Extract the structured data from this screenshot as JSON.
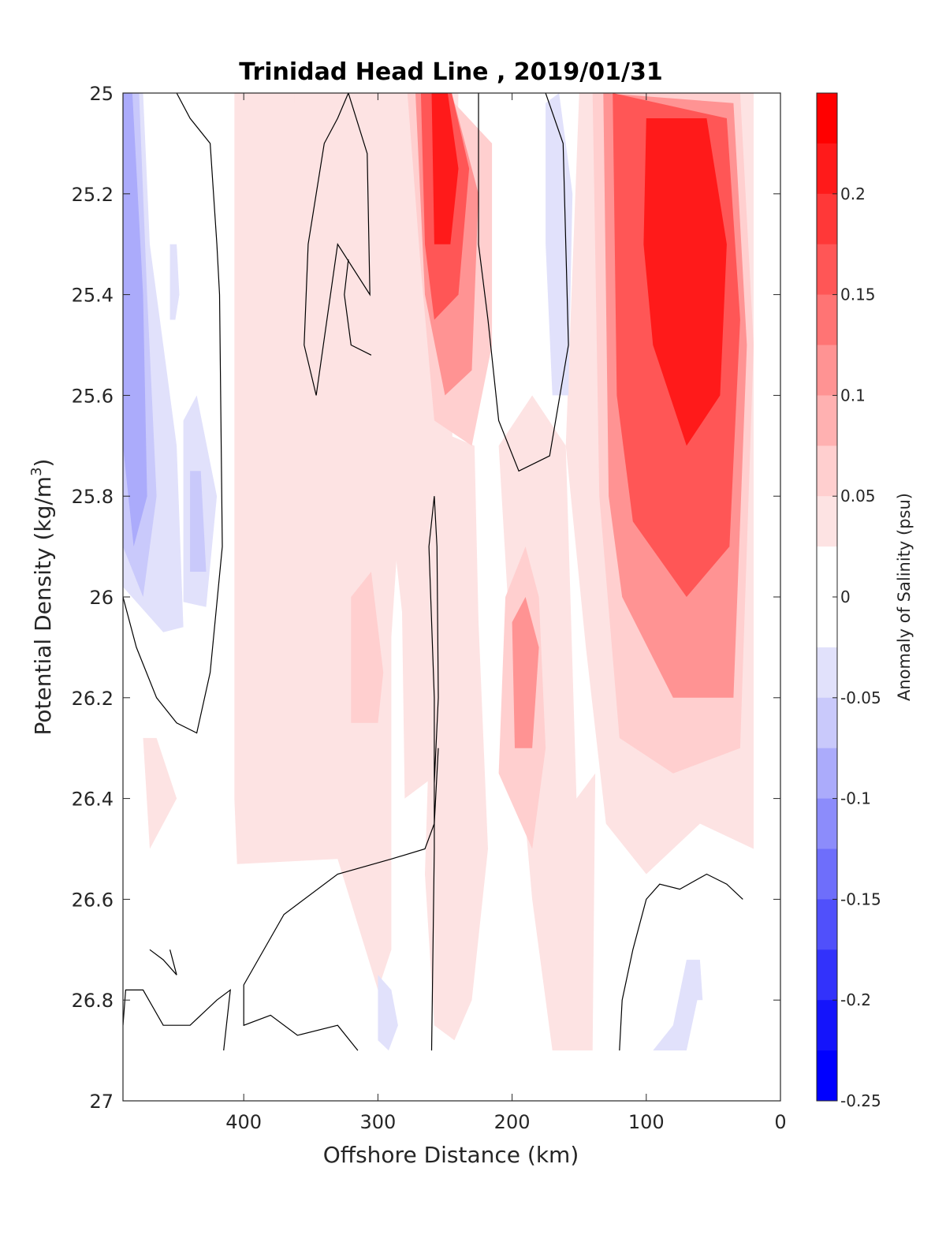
{
  "chart_data": {
    "type": "filled-contour",
    "title": "Trinidad Head Line , 2019/01/31",
    "xlabel": "Offshore Distance (km)",
    "ylabel": "Potential Density (kg/m",
    "ylabel_sup": "3",
    "ylabel_end": ")",
    "xlim": [
      490,
      0
    ],
    "ylim": [
      25,
      27
    ],
    "x_reversed": true,
    "y_reversed": true,
    "xticks": [
      400,
      300,
      200,
      100,
      0
    ],
    "yticks": [
      25,
      25.2,
      25.4,
      25.6,
      25.8,
      26,
      26.2,
      26.4,
      26.6,
      26.8,
      27
    ],
    "xtick_labels": [
      "400",
      "300",
      "200",
      "100",
      "0"
    ],
    "ytick_labels": [
      "25",
      "25.2",
      "25.4",
      "25.6",
      "25.8",
      "26",
      "26.2",
      "26.4",
      "26.6",
      "26.8",
      "27"
    ],
    "grid": false,
    "colorbar": {
      "label": "Anomaly of Salinity (psu)",
      "range": [
        -0.25,
        0.25
      ],
      "tick_values": [
        0.2,
        0.15,
        0.1,
        0.05,
        0,
        -0.05,
        -0.1,
        -0.15,
        -0.2,
        -0.25
      ],
      "tick_labels": [
        "0.2",
        "0.15",
        "0.1",
        "0.05",
        "0",
        "-0.05",
        "-0.1",
        "-0.15",
        "-0.2",
        "-0.25"
      ],
      "colors": [
        "#ff0000",
        "#ff1a1a",
        "#ff3838",
        "#ff5656",
        "#ff7474",
        "#ff9393",
        "#ffb1b1",
        "#ffcfcf",
        "#fde3e3",
        "#ffffff",
        "#ffffff",
        "#e1e1fb",
        "#c9c9fb",
        "#ababfb",
        "#8c8cfb",
        "#6e6efb",
        "#5050fb",
        "#3232fb",
        "#1414fb",
        "#0000ff"
      ]
    },
    "contour_levels": [
      {
        "level": 0.15,
        "color": "#ff1a1a"
      },
      {
        "level": 0.1,
        "color": "#ff5656"
      },
      {
        "level": 0.075,
        "color": "#ff9393"
      },
      {
        "level": 0.05,
        "color": "#ffcfcf"
      },
      {
        "level": 0.025,
        "color": "#fde3e3"
      },
      {
        "level": -0.025,
        "color": "#e1e1fb"
      },
      {
        "level": -0.05,
        "color": "#c9c9fb"
      },
      {
        "level": -0.075,
        "color": "#ababfb"
      }
    ],
    "regions": [
      {
        "level": 0.025,
        "points": [
          [
            407,
            25
          ],
          [
            278,
            25
          ],
          [
            278,
            25.6
          ],
          [
            290,
            26.08
          ],
          [
            290,
            26.7
          ],
          [
            300,
            26.78
          ],
          [
            330,
            26.52
          ],
          [
            405,
            26.53
          ],
          [
            407,
            26.4
          ]
        ]
      },
      {
        "level": 0.025,
        "points": [
          [
            300,
            25
          ],
          [
            240,
            25
          ],
          [
            248,
            26.2
          ],
          [
            255,
            26.35
          ],
          [
            280,
            26.4
          ],
          [
            282,
            26.03
          ],
          [
            295,
            25.72
          ]
        ]
      },
      {
        "level": 0.025,
        "points": [
          [
            228,
            25.7
          ],
          [
            225,
            26.05
          ],
          [
            218,
            26.5
          ],
          [
            230,
            26.8
          ],
          [
            243,
            26.88
          ],
          [
            258,
            26.85
          ],
          [
            265,
            26.55
          ],
          [
            258,
            25.95
          ],
          [
            246,
            25.68
          ]
        ]
      },
      {
        "level": 0.025,
        "points": [
          [
            210,
            25.7
          ],
          [
            200,
            26.15
          ],
          [
            185,
            26.6
          ],
          [
            170,
            26.9
          ],
          [
            140,
            26.9
          ],
          [
            138,
            26.35
          ],
          [
            152,
            26.4
          ],
          [
            160,
            25.7
          ],
          [
            185,
            25.6
          ]
        ]
      },
      {
        "level": 0.025,
        "points": [
          [
            150,
            25
          ],
          [
            20,
            25
          ],
          [
            20,
            26.5
          ],
          [
            60,
            26.45
          ],
          [
            100,
            26.55
          ],
          [
            130,
            26.45
          ],
          [
            145,
            26.1
          ],
          [
            160,
            25.7
          ]
        ]
      },
      {
        "level": 0.025,
        "points": [
          [
            475,
            26.28
          ],
          [
            465,
            26.28
          ],
          [
            450,
            26.4
          ],
          [
            470,
            26.5
          ]
        ]
      },
      {
        "level": 0.025,
        "points": [
          [
            388,
            25.02
          ],
          [
            362,
            25.02
          ],
          [
            362,
            25.0
          ],
          [
            388,
            25.0
          ]
        ]
      },
      {
        "level": 0.05,
        "points": [
          [
            278,
            25.0
          ],
          [
            250,
            25.0
          ],
          [
            215,
            25.1
          ],
          [
            215,
            25.5
          ],
          [
            230,
            25.7
          ],
          [
            258,
            25.65
          ],
          [
            268,
            25.35
          ]
        ]
      },
      {
        "level": 0.05,
        "points": [
          [
            140,
            25.0
          ],
          [
            30,
            25.0
          ],
          [
            20,
            25.5
          ],
          [
            30,
            26.3
          ],
          [
            80,
            26.35
          ],
          [
            120,
            26.28
          ],
          [
            135,
            25.8
          ]
        ]
      },
      {
        "level": 0.05,
        "points": [
          [
            205,
            26.0
          ],
          [
            190,
            25.9
          ],
          [
            180,
            26.0
          ],
          [
            175,
            26.3
          ],
          [
            185,
            26.5
          ],
          [
            210,
            26.35
          ]
        ]
      },
      {
        "level": 0.05,
        "points": [
          [
            320,
            26.0
          ],
          [
            305,
            25.95
          ],
          [
            296,
            26.15
          ],
          [
            300,
            26.25
          ],
          [
            320,
            26.25
          ]
        ]
      },
      {
        "level": 0.075,
        "points": [
          [
            272,
            25.0
          ],
          [
            245,
            25.0
          ],
          [
            225,
            25.2
          ],
          [
            230,
            25.55
          ],
          [
            250,
            25.6
          ],
          [
            265,
            25.4
          ]
        ]
      },
      {
        "level": 0.075,
        "points": [
          [
            132,
            25.0
          ],
          [
            35,
            25.02
          ],
          [
            25,
            25.5
          ],
          [
            35,
            26.2
          ],
          [
            80,
            26.2
          ],
          [
            118,
            26.0
          ],
          [
            128,
            25.8
          ]
        ]
      },
      {
        "level": 0.075,
        "points": [
          [
            200,
            26.05
          ],
          [
            190,
            26.0
          ],
          [
            180,
            26.1
          ],
          [
            185,
            26.3
          ],
          [
            198,
            26.3
          ]
        ]
      },
      {
        "level": 0.1,
        "points": [
          [
            268,
            25.0
          ],
          [
            245,
            25.0
          ],
          [
            232,
            25.15
          ],
          [
            240,
            25.4
          ],
          [
            258,
            25.45
          ],
          [
            265,
            25.3
          ]
        ]
      },
      {
        "level": 0.1,
        "points": [
          [
            125,
            25.0
          ],
          [
            40,
            25.05
          ],
          [
            30,
            25.45
          ],
          [
            38,
            25.9
          ],
          [
            70,
            26.0
          ],
          [
            110,
            25.85
          ],
          [
            122,
            25.6
          ]
        ]
      },
      {
        "level": 0.15,
        "points": [
          [
            260,
            25.0
          ],
          [
            248,
            25.0
          ],
          [
            240,
            25.15
          ],
          [
            246,
            25.3
          ],
          [
            258,
            25.3
          ]
        ]
      },
      {
        "level": 0.15,
        "points": [
          [
            100,
            25.05
          ],
          [
            55,
            25.05
          ],
          [
            40,
            25.3
          ],
          [
            45,
            25.6
          ],
          [
            70,
            25.7
          ],
          [
            95,
            25.5
          ],
          [
            102,
            25.3
          ]
        ]
      },
      {
        "level": -0.025,
        "points": [
          [
            490,
            25.0
          ],
          [
            475,
            25.0
          ],
          [
            470,
            25.3
          ],
          [
            460,
            25.5
          ],
          [
            450,
            25.7
          ],
          [
            445,
            26.06
          ],
          [
            460,
            26.07
          ],
          [
            490,
            25.98
          ]
        ]
      },
      {
        "level": -0.025,
        "points": [
          [
            455,
            25.3
          ],
          [
            450,
            25.3
          ],
          [
            448,
            25.4
          ],
          [
            451,
            25.45
          ],
          [
            455,
            25.45
          ]
        ]
      },
      {
        "level": -0.025,
        "points": [
          [
            445,
            25.65
          ],
          [
            435,
            25.6
          ],
          [
            420,
            25.8
          ],
          [
            428,
            26.02
          ],
          [
            445,
            26.01
          ]
        ]
      },
      {
        "level": -0.025,
        "points": [
          [
            175,
            25.02
          ],
          [
            165,
            25.0
          ],
          [
            155,
            25.2
          ],
          [
            158,
            25.6
          ],
          [
            170,
            25.6
          ],
          [
            175,
            25.3
          ]
        ]
      },
      {
        "level": -0.025,
        "points": [
          [
            300,
            26.75
          ],
          [
            290,
            26.78
          ],
          [
            285,
            26.85
          ],
          [
            292,
            26.9
          ],
          [
            300,
            26.88
          ]
        ]
      },
      {
        "level": -0.025,
        "points": [
          [
            80,
            26.85
          ],
          [
            70,
            26.72
          ],
          [
            60,
            26.72
          ],
          [
            58,
            26.8
          ],
          [
            62,
            26.8
          ],
          [
            70,
            26.9
          ],
          [
            95,
            26.9
          ]
        ]
      },
      {
        "level": -0.05,
        "points": [
          [
            490,
            25.0
          ],
          [
            478,
            25.0
          ],
          [
            472,
            25.4
          ],
          [
            465,
            25.8
          ],
          [
            475,
            26.0
          ],
          [
            490,
            25.9
          ]
        ]
      },
      {
        "level": -0.05,
        "points": [
          [
            440,
            25.75
          ],
          [
            432,
            25.75
          ],
          [
            428,
            25.95
          ],
          [
            440,
            25.95
          ]
        ]
      },
      {
        "level": -0.075,
        "points": [
          [
            490,
            25.0
          ],
          [
            483,
            25.0
          ],
          [
            475,
            25.4
          ],
          [
            472,
            25.8
          ],
          [
            482,
            25.9
          ],
          [
            490,
            25.7
          ]
        ]
      }
    ],
    "zero_contours": [
      [
        [
          490,
          26.0
        ],
        [
          480,
          26.1
        ],
        [
          465,
          26.2
        ],
        [
          450,
          26.25
        ],
        [
          435,
          26.27
        ],
        [
          425,
          26.15
        ],
        [
          416,
          25.9
        ],
        [
          418,
          25.4
        ],
        [
          420,
          25.3
        ],
        [
          425,
          25.1
        ],
        [
          440,
          25.05
        ],
        [
          450,
          25.0
        ]
      ],
      [
        [
          346,
          25.6
        ],
        [
          355,
          25.5
        ],
        [
          352,
          25.3
        ],
        [
          340,
          25.1
        ],
        [
          330,
          25.05
        ],
        [
          322,
          25.0
        ],
        [
          308,
          25.12
        ],
        [
          306,
          25.4
        ],
        [
          330,
          25.3
        ],
        [
          346,
          25.6
        ]
      ],
      [
        [
          322,
          25.33
        ],
        [
          325,
          25.4
        ],
        [
          320,
          25.5
        ],
        [
          305,
          25.52
        ]
      ],
      [
        [
          175,
          25.0
        ],
        [
          162,
          25.1
        ],
        [
          158,
          25.5
        ],
        [
          172,
          25.72
        ],
        [
          195,
          25.75
        ],
        [
          210,
          25.65
        ],
        [
          218,
          25.45
        ],
        [
          225,
          25.3
        ],
        [
          225,
          25.0
        ]
      ],
      [
        [
          260,
          26.9
        ],
        [
          258,
          26.5
        ],
        [
          258,
          26.2
        ],
        [
          262,
          25.9
        ],
        [
          258,
          25.8
        ],
        [
          256,
          25.9
        ],
        [
          255,
          26.2
        ],
        [
          258,
          26.37
        ]
      ],
      [
        [
          255,
          26.3
        ],
        [
          258,
          26.45
        ],
        [
          265,
          26.5
        ],
        [
          290,
          26.52
        ],
        [
          330,
          26.55
        ],
        [
          370,
          26.63
        ],
        [
          400,
          26.77
        ],
        [
          400,
          26.85
        ],
        [
          380,
          26.83
        ],
        [
          360,
          26.87
        ],
        [
          330,
          26.85
        ],
        [
          315,
          26.9
        ]
      ],
      [
        [
          490,
          26.85
        ],
        [
          488,
          26.78
        ],
        [
          475,
          26.78
        ],
        [
          460,
          26.85
        ],
        [
          440,
          26.85
        ],
        [
          420,
          26.8
        ],
        [
          410,
          26.78
        ],
        [
          415,
          26.9
        ]
      ],
      [
        [
          470,
          26.7
        ],
        [
          460,
          26.72
        ],
        [
          450,
          26.75
        ],
        [
          455,
          26.7
        ]
      ],
      [
        [
          120,
          26.9
        ],
        [
          118,
          26.8
        ],
        [
          110,
          26.7
        ],
        [
          100,
          26.6
        ],
        [
          90,
          26.57
        ],
        [
          75,
          26.58
        ],
        [
          55,
          26.55
        ],
        [
          40,
          26.57
        ],
        [
          28,
          26.6
        ]
      ]
    ]
  }
}
